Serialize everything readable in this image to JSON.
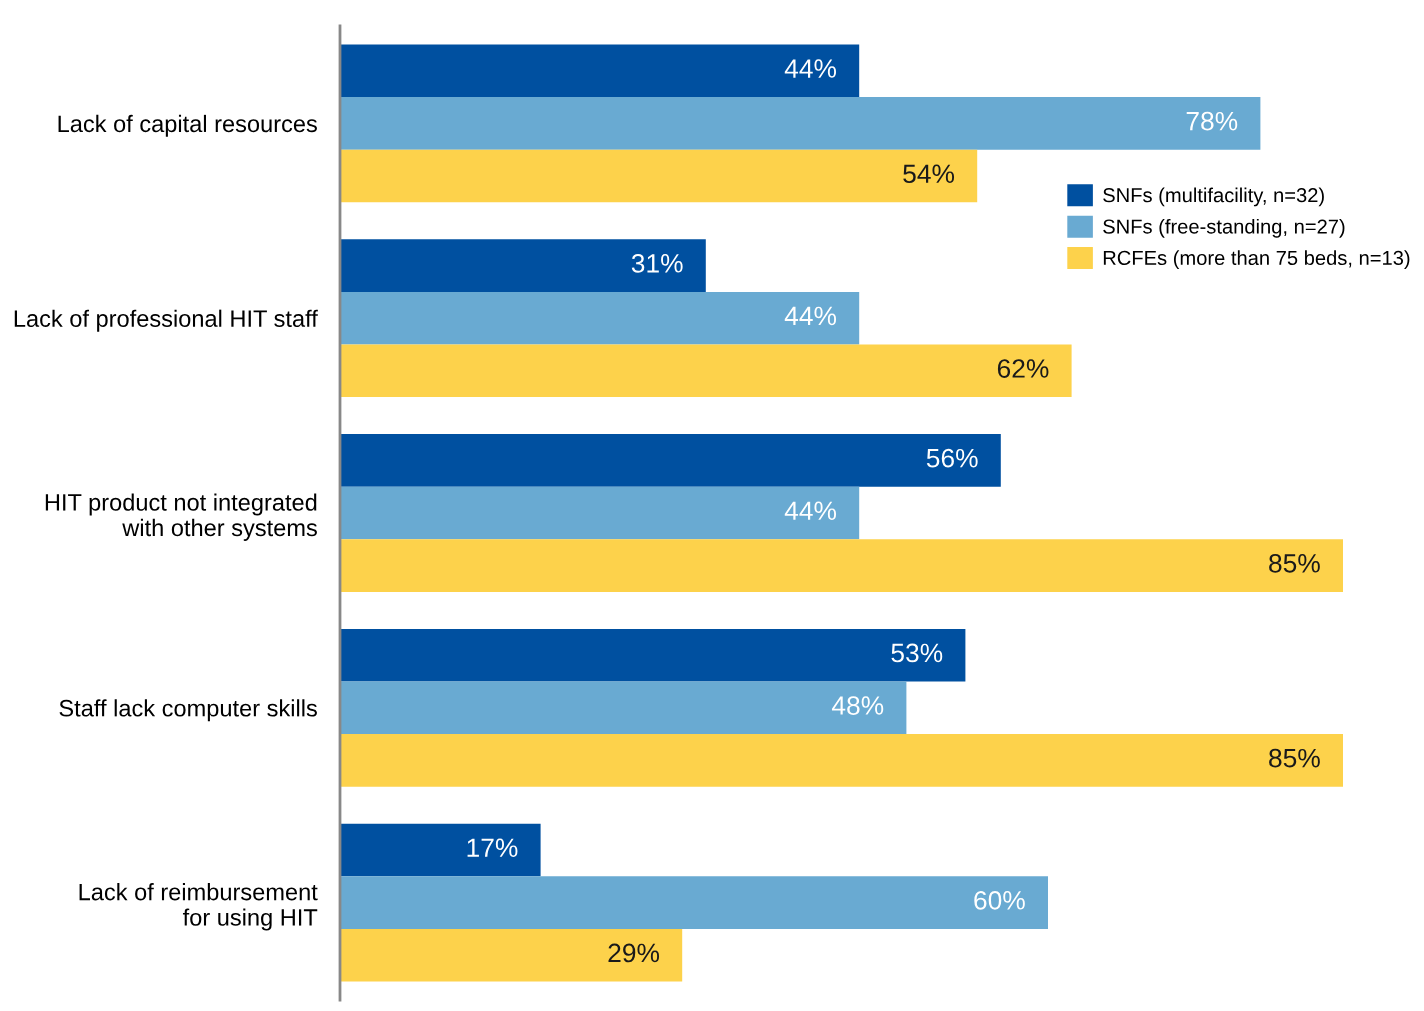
{
  "chart_data": {
    "type": "bar",
    "orientation": "horizontal",
    "categories": [
      "Lack of capital resources",
      "Lack of professional HIT staff",
      "HIT product not integrated\nwith other systems",
      "Staff lack computer skills",
      "Lack of reimbursement\nfor using HIT"
    ],
    "series": [
      {
        "name": "SNFs (multifacility, n=32)",
        "color": "#0050a0",
        "values": [
          44,
          31,
          56,
          53,
          17
        ],
        "value_labels": [
          "44%",
          "31%",
          "56%",
          "53%",
          "17%"
        ]
      },
      {
        "name": "SNFs (free-standing, n=27)",
        "color": "#69aad2",
        "values": [
          78,
          44,
          44,
          48,
          60
        ],
        "value_labels": [
          "78%",
          "44%",
          "44%",
          "48%",
          "60%"
        ]
      },
      {
        "name": "RCFEs (more than 75 beds, n=13)",
        "color": "#fdd24b",
        "values": [
          54,
          62,
          85,
          85,
          29
        ],
        "value_labels": [
          "54%",
          "62%",
          "85%",
          "85%",
          "29%"
        ]
      }
    ],
    "legend": "right",
    "grid": false,
    "tick_labels": "y"
  }
}
